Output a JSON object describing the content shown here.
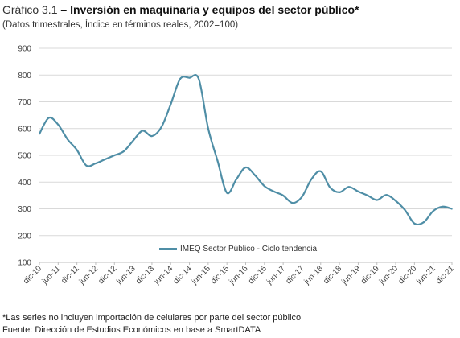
{
  "header": {
    "label": "Gráfico 3.1",
    "separator": "–",
    "title": "Inversión en maquinaria y equipos del sector público*",
    "subtitle": "(Datos trimestrales, Índice en términos reales, 2002=100)"
  },
  "notes": {
    "footnote": "*Las series no incluyen importación de celulares por parte del sector público",
    "source": "Fuente: Dirección de Estudios Económicos en base a SmartDATA"
  },
  "colors": {
    "series": "#4f8ea6",
    "grid": "#d9d9d9",
    "axis": "#bfbfbf"
  },
  "chart_data": {
    "type": "line",
    "title": "Inversión en maquinaria y equipos del sector público*",
    "subtitle": "(Datos trimestrales, Índice en términos reales, 2002=100)",
    "xlabel": "",
    "ylabel": "",
    "ylim": [
      100,
      900
    ],
    "yticks": [
      100,
      200,
      300,
      400,
      500,
      600,
      700,
      800,
      900
    ],
    "grid": "horizontal",
    "legend_position": "bottom-center",
    "x_tick_labels": [
      "dic-10",
      "jun-11",
      "dic-11",
      "jun-12",
      "dic-12",
      "jun-13",
      "dic-13",
      "jun-14",
      "dic-14",
      "jun-15",
      "dic-15",
      "jun-16",
      "dic-16",
      "jun-17",
      "dic-17",
      "jun-18",
      "dic-18",
      "jun-19",
      "dic-19",
      "jun-20",
      "dic-20",
      "jun-21",
      "dic-21"
    ],
    "x": [
      "dic-10",
      "mar-11",
      "jun-11",
      "sep-11",
      "dic-11",
      "mar-12",
      "jun-12",
      "sep-12",
      "dic-12",
      "mar-13",
      "jun-13",
      "sep-13",
      "dic-13",
      "mar-14",
      "jun-14",
      "sep-14",
      "dic-14",
      "mar-15",
      "jun-15",
      "sep-15",
      "dic-15",
      "mar-16",
      "jun-16",
      "sep-16",
      "dic-16",
      "mar-17",
      "jun-17",
      "sep-17",
      "dic-17",
      "mar-18",
      "jun-18",
      "sep-18",
      "dic-18",
      "mar-19",
      "jun-19",
      "sep-19",
      "dic-19",
      "mar-20",
      "jun-20",
      "sep-20",
      "dic-20",
      "mar-21",
      "jun-21",
      "sep-21",
      "dic-21"
    ],
    "series": [
      {
        "name": "IMEQ Sector Público - Ciclo tendencia",
        "values": [
          580,
          640,
          615,
          560,
          520,
          462,
          470,
          485,
          500,
          515,
          555,
          592,
          572,
          605,
          690,
          785,
          790,
          785,
          600,
          480,
          360,
          410,
          455,
          425,
          385,
          365,
          350,
          322,
          345,
          410,
          440,
          380,
          362,
          382,
          365,
          350,
          333,
          352,
          330,
          295,
          245,
          250,
          292,
          308,
          300
        ]
      }
    ]
  }
}
